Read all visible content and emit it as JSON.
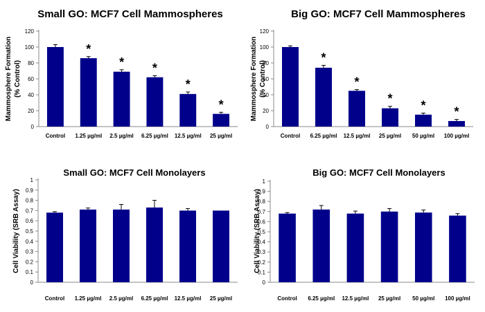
{
  "colors": {
    "bar": "#00008B",
    "axis": "#888888",
    "text": "#000000"
  },
  "chart_data": [
    {
      "type": "bar",
      "title": "Small GO: MCF7 Cell Mammospheres",
      "ylabel": [
        "Mammosphere Formation",
        "(% Control)"
      ],
      "xlabel": "",
      "ylim": [
        0,
        120
      ],
      "yticks": [
        0,
        20,
        40,
        60,
        80,
        100,
        120
      ],
      "ytick_labels": [
        "0",
        "20",
        "40",
        "60",
        "80",
        "100",
        "120"
      ],
      "categories": [
        "Control",
        "1.25 µg/ml",
        "2.5 µg/ml",
        "6.25 µg/ml",
        "12.5 µg/ml",
        "25 µg/ml"
      ],
      "values": [
        100,
        86,
        69,
        62,
        41,
        16
      ],
      "errors": [
        3,
        2,
        2.5,
        2,
        2.5,
        2
      ],
      "annotations": [
        "",
        "*",
        "*",
        "*",
        "*",
        "*"
      ],
      "grid": false
    },
    {
      "type": "bar",
      "title": "Big GO: MCF7 Cell Mammospheres",
      "ylabel": [
        "Mammosphere Formation",
        "(% Control)"
      ],
      "xlabel": "",
      "ylim": [
        0,
        120
      ],
      "yticks": [
        0,
        20,
        40,
        60,
        80,
        100,
        120
      ],
      "ytick_labels": [
        "0",
        "20",
        "40",
        "60",
        "80",
        "100",
        "120"
      ],
      "categories": [
        "Control",
        "6.25 µg/ml",
        "12.5 µg/ml",
        "25 µg/ml",
        "50 µg/ml",
        "100 µg/ml"
      ],
      "values": [
        100,
        74,
        45,
        23,
        15,
        7
      ],
      "errors": [
        1.5,
        3,
        1.5,
        2.5,
        2,
        2
      ],
      "annotations": [
        "",
        "*",
        "*",
        "*",
        "*",
        "*"
      ],
      "grid": false
    },
    {
      "type": "bar",
      "title": "Small GO: MCF7 Cell Monolayers",
      "ylabel": [
        "Cell Viability (SRB Assay)"
      ],
      "xlabel": "",
      "ylim": [
        0,
        1
      ],
      "yticks": [
        0,
        0.1,
        0.2,
        0.3,
        0.4,
        0.5,
        0.6,
        0.7,
        0.8,
        0.9,
        1
      ],
      "ytick_labels": [
        "0",
        "0.1",
        "0.2",
        "0.3",
        "0.4",
        "0.5",
        "0.6",
        "0.7",
        "0.8",
        "0.9",
        "1"
      ],
      "categories": [
        "Control",
        "1.25 µg/ml",
        "2.5 µg/ml",
        "6.25 µg/ml",
        "12.5 µg/ml",
        "25 µg/ml"
      ],
      "values": [
        0.68,
        0.71,
        0.71,
        0.73,
        0.7,
        0.7
      ],
      "errors": [
        0.01,
        0.015,
        0.05,
        0.07,
        0.02,
        0
      ],
      "annotations": [
        "",
        "",
        "",
        "",
        "",
        ""
      ],
      "grid": false
    },
    {
      "type": "bar",
      "title": "Big GO: MCF7 Cell Monolayers",
      "ylabel": [
        "Cell Viability (SRB Assay)"
      ],
      "xlabel": "",
      "ylim": [
        0,
        1
      ],
      "yticks": [
        0,
        0.1,
        0.2,
        0.3,
        0.4,
        0.5,
        0.6,
        0.7,
        0.8,
        0.9,
        1
      ],
      "ytick_labels": [
        "0",
        "0.1",
        "0.2",
        "0.3",
        "0.4",
        "0.5",
        "0.6",
        "0.7",
        "0.8",
        "0.9",
        "1"
      ],
      "categories": [
        "Control",
        "6.25 µg/ml",
        "12.5 µg/ml",
        "25 µg/ml",
        "50 µg/ml",
        "100 µg/ml"
      ],
      "values": [
        0.68,
        0.72,
        0.68,
        0.7,
        0.69,
        0.66
      ],
      "errors": [
        0.01,
        0.04,
        0.025,
        0.03,
        0.025,
        0.02
      ],
      "annotations": [
        "",
        "",
        "",
        "",
        "",
        ""
      ],
      "grid": false
    }
  ]
}
